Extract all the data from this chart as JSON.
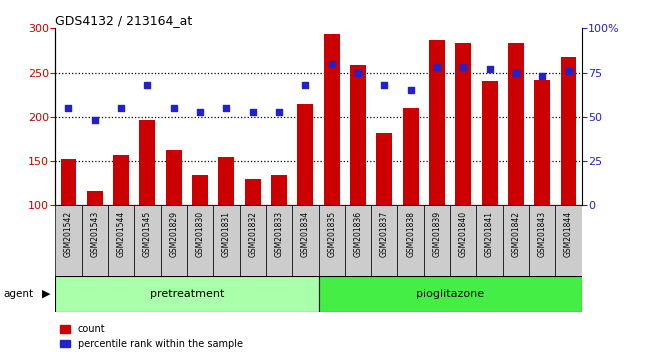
{
  "title": "GDS4132 / 213164_at",
  "categories": [
    "GSM201542",
    "GSM201543",
    "GSM201544",
    "GSM201545",
    "GSM201829",
    "GSM201830",
    "GSM201831",
    "GSM201832",
    "GSM201833",
    "GSM201834",
    "GSM201835",
    "GSM201836",
    "GSM201837",
    "GSM201838",
    "GSM201839",
    "GSM201840",
    "GSM201841",
    "GSM201842",
    "GSM201843",
    "GSM201844"
  ],
  "bar_values": [
    152,
    116,
    157,
    196,
    163,
    134,
    155,
    130,
    134,
    214,
    294,
    258,
    182,
    210,
    287,
    283,
    240,
    283,
    242,
    268
  ],
  "dot_values_pct": [
    55,
    48,
    55,
    68,
    55,
    53,
    55,
    53,
    53,
    68,
    80,
    75,
    68,
    65,
    78,
    78,
    77,
    75,
    73,
    76
  ],
  "bar_color": "#cc0000",
  "dot_color": "#2222cc",
  "ylim_left": [
    100,
    300
  ],
  "ylim_right": [
    0,
    100
  ],
  "yticks_left": [
    100,
    150,
    200,
    250,
    300
  ],
  "yticks_right": [
    0,
    25,
    50,
    75,
    100
  ],
  "ytick_labels_right": [
    "0",
    "25",
    "50",
    "75",
    "100%"
  ],
  "group1_label": "pretreatment",
  "group2_label": "pioglitazone",
  "group1_count": 10,
  "group2_count": 10,
  "agent_label": "agent",
  "legend_bar": "count",
  "legend_dot": "percentile rank within the sample",
  "grid_dotted_values": [
    150,
    200,
    250
  ],
  "bar_bottom": 100,
  "background_color": "#ffffff",
  "plot_bg_color": "#ffffff",
  "group_color_1": "#aaffaa",
  "group_color_2": "#44ee44",
  "tick_label_bg": "#cccccc",
  "bar_width": 0.6
}
